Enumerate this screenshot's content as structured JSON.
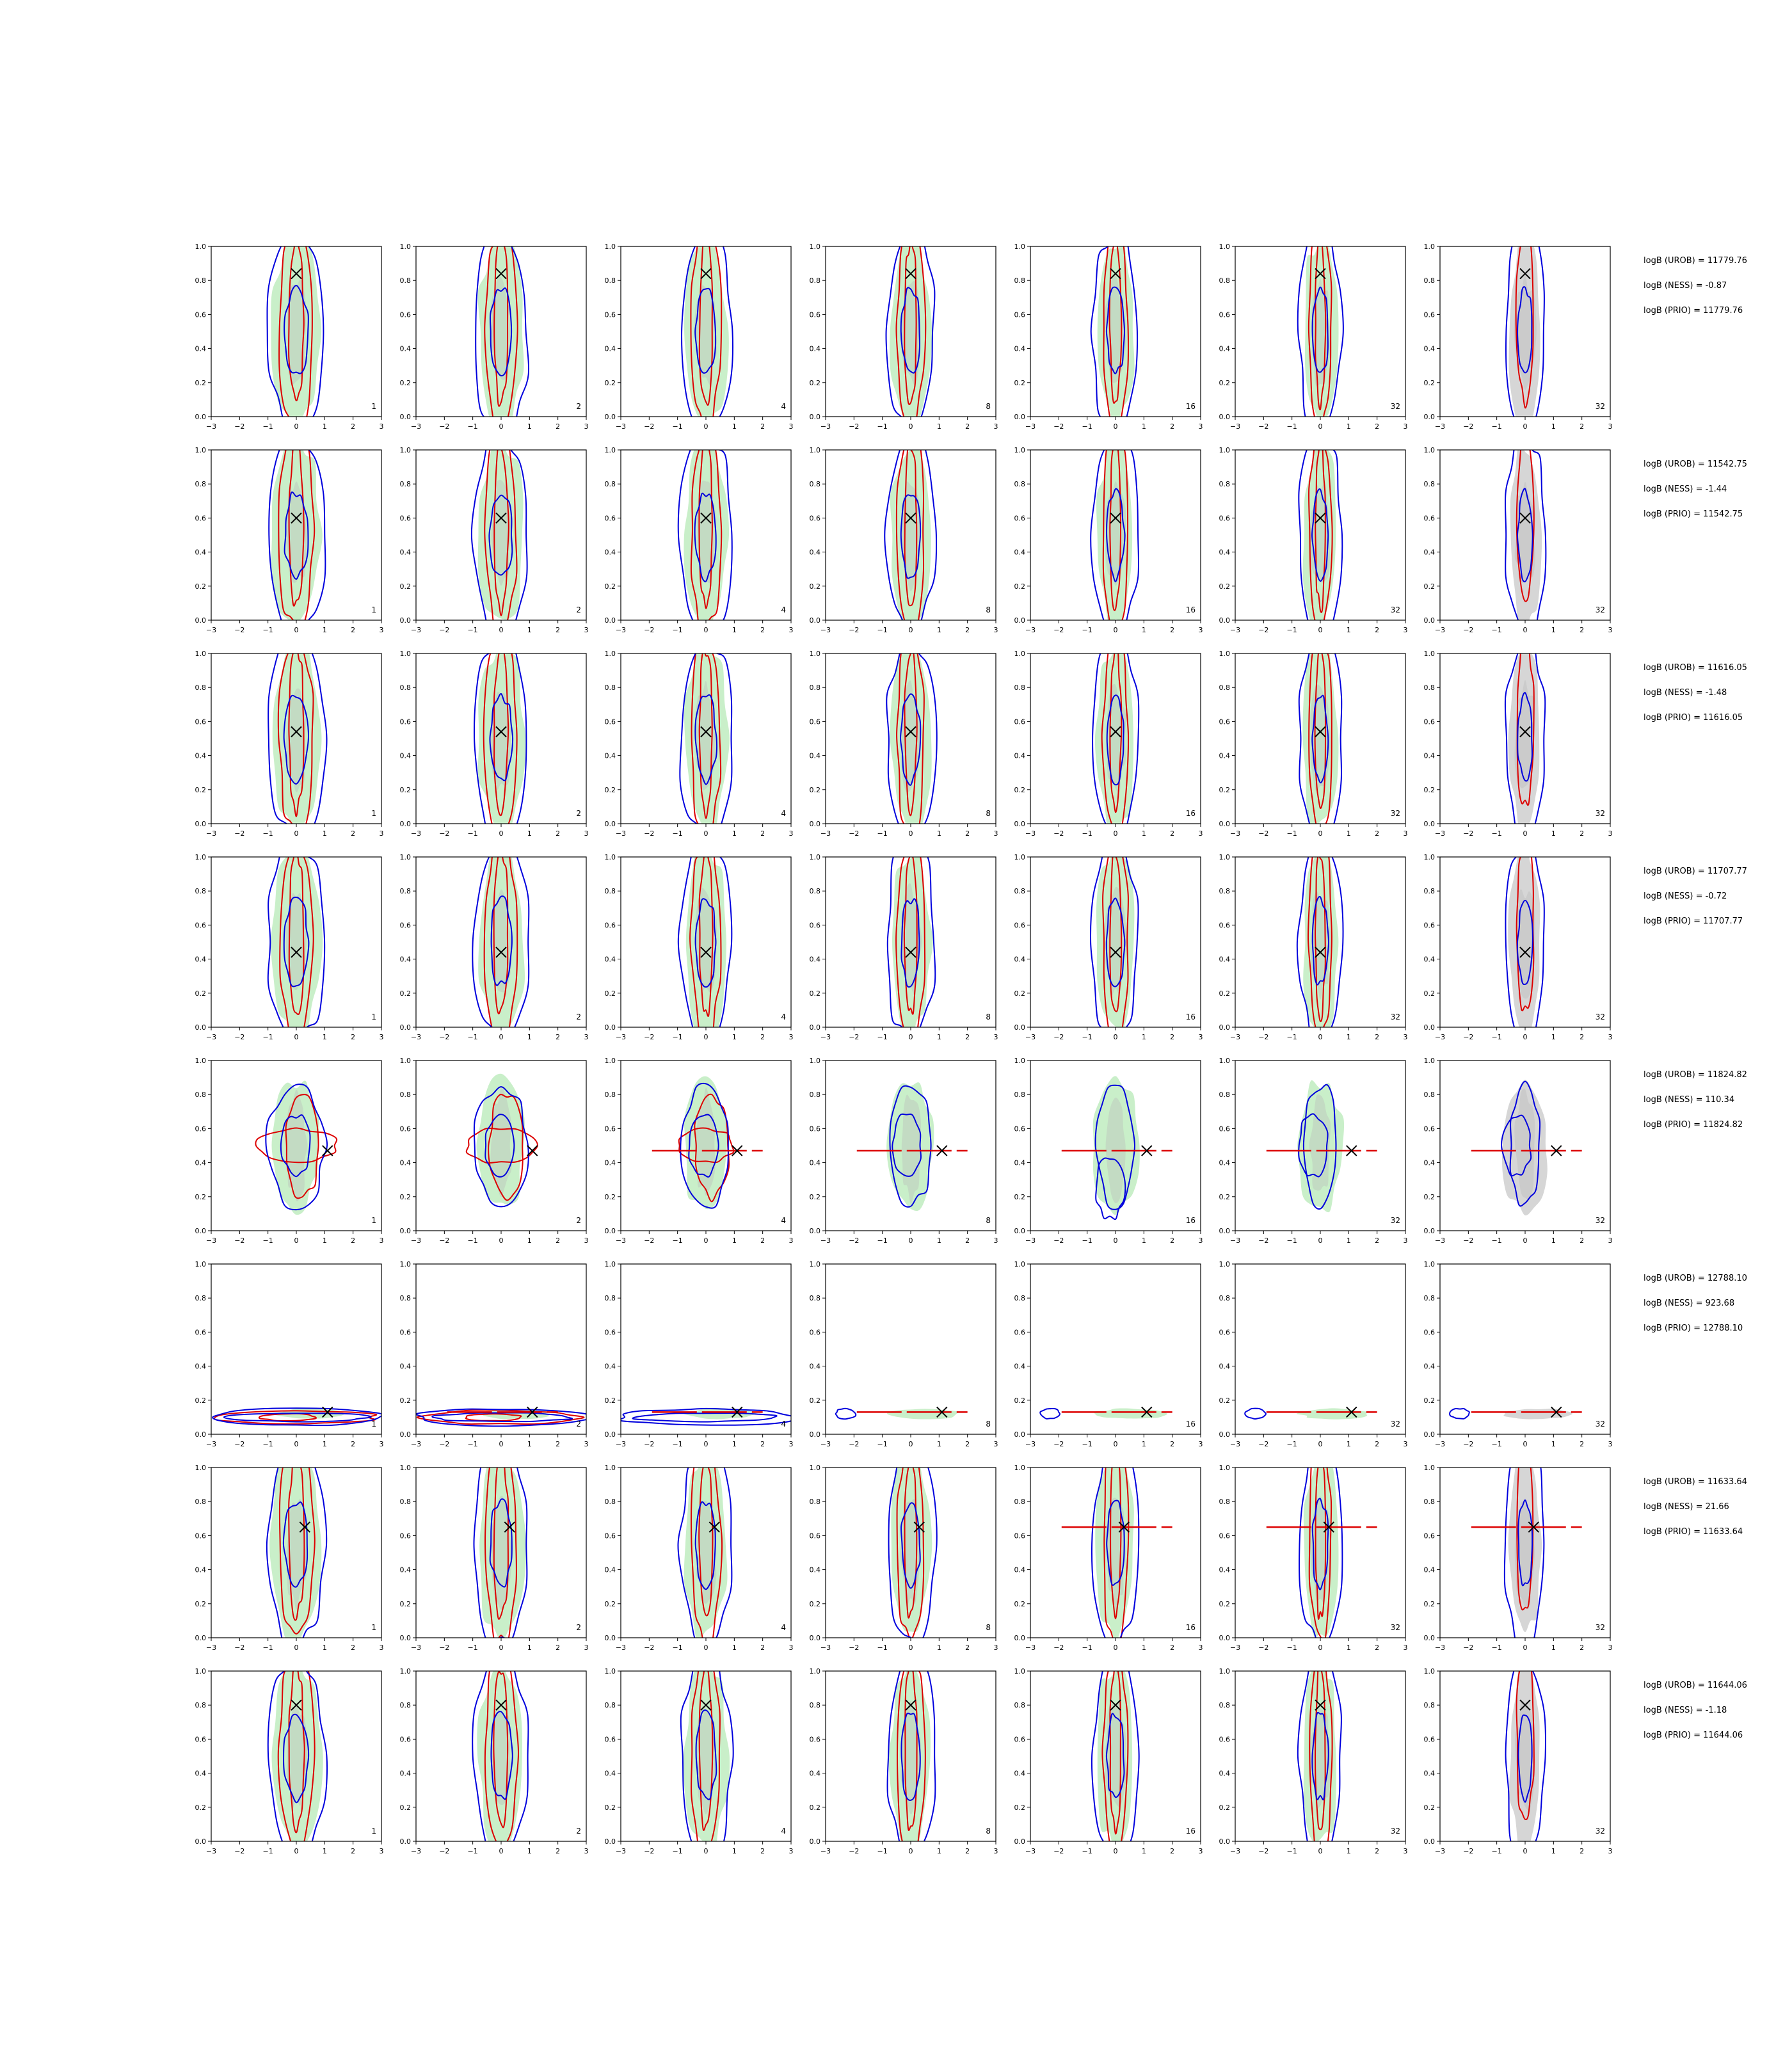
{
  "chart_data": {
    "type": "contour",
    "description_of_marks": "grid of 8 rows x 7 columns of 2D density contour panels; green and grey filled density regions, red and blue contour lines, black X marker",
    "grid": false,
    "colors": {
      "fill_green": "#c9efc9",
      "fill_grey": "#d6d6d6",
      "contour_red": "#dd0000",
      "contour_blue": "#0000dd",
      "marker": "#000000"
    },
    "xlim": [
      -3,
      3
    ],
    "ylim": [
      0,
      1
    ],
    "xticks": [
      "−3",
      "−2",
      "−1",
      "0",
      "1",
      "2",
      "3"
    ],
    "yticks": [
      "0.0",
      "0.2",
      "0.4",
      "0.6",
      "0.8",
      "1.0"
    ],
    "column_labels": [
      "1",
      "2",
      "4",
      "8",
      "16",
      "32",
      "32"
    ],
    "rows": [
      {
        "marker": [
          0,
          0.84
        ],
        "logB": [
          "logB (UROB) = 11779.76",
          "logB (NESS) = -0.87",
          "logB (PRIO) = 11779.76"
        ]
      },
      {
        "marker": [
          0,
          0.6
        ],
        "logB": [
          "logB (UROB) = 11542.75",
          "logB (NESS) = -1.44",
          "logB (PRIO) = 11542.75"
        ]
      },
      {
        "marker": [
          0,
          0.54
        ],
        "logB": [
          "logB (UROB) = 11616.05",
          "logB (NESS) = -1.48",
          "logB (PRIO) = 11616.05"
        ]
      },
      {
        "marker": [
          0,
          0.44
        ],
        "logB": [
          "logB (UROB) = 11707.77",
          "logB (NESS) = -0.72",
          "logB (PRIO) = 11707.77"
        ]
      },
      {
        "marker": [
          1.1,
          0.47
        ],
        "logB": [
          "logB (UROB) = 11824.82",
          "logB (NESS) = 110.34",
          "logB (PRIO) = 11824.82"
        ]
      },
      {
        "marker": [
          1.1,
          0.13
        ],
        "logB": [
          "logB (UROB) = 12788.10",
          "logB (NESS) = 923.68",
          "logB (PRIO) = 12788.10"
        ]
      },
      {
        "marker": [
          0.3,
          0.65
        ],
        "logB": [
          "logB (UROB) = 11633.64",
          "logB (NESS) = 21.66",
          "logB (PRIO) = 11633.64"
        ]
      },
      {
        "marker": [
          0,
          0.8
        ],
        "logB": [
          "logB (UROB) = 11644.06",
          "logB (NESS) = -1.18",
          "logB (PRIO) = 11644.06"
        ]
      }
    ]
  }
}
